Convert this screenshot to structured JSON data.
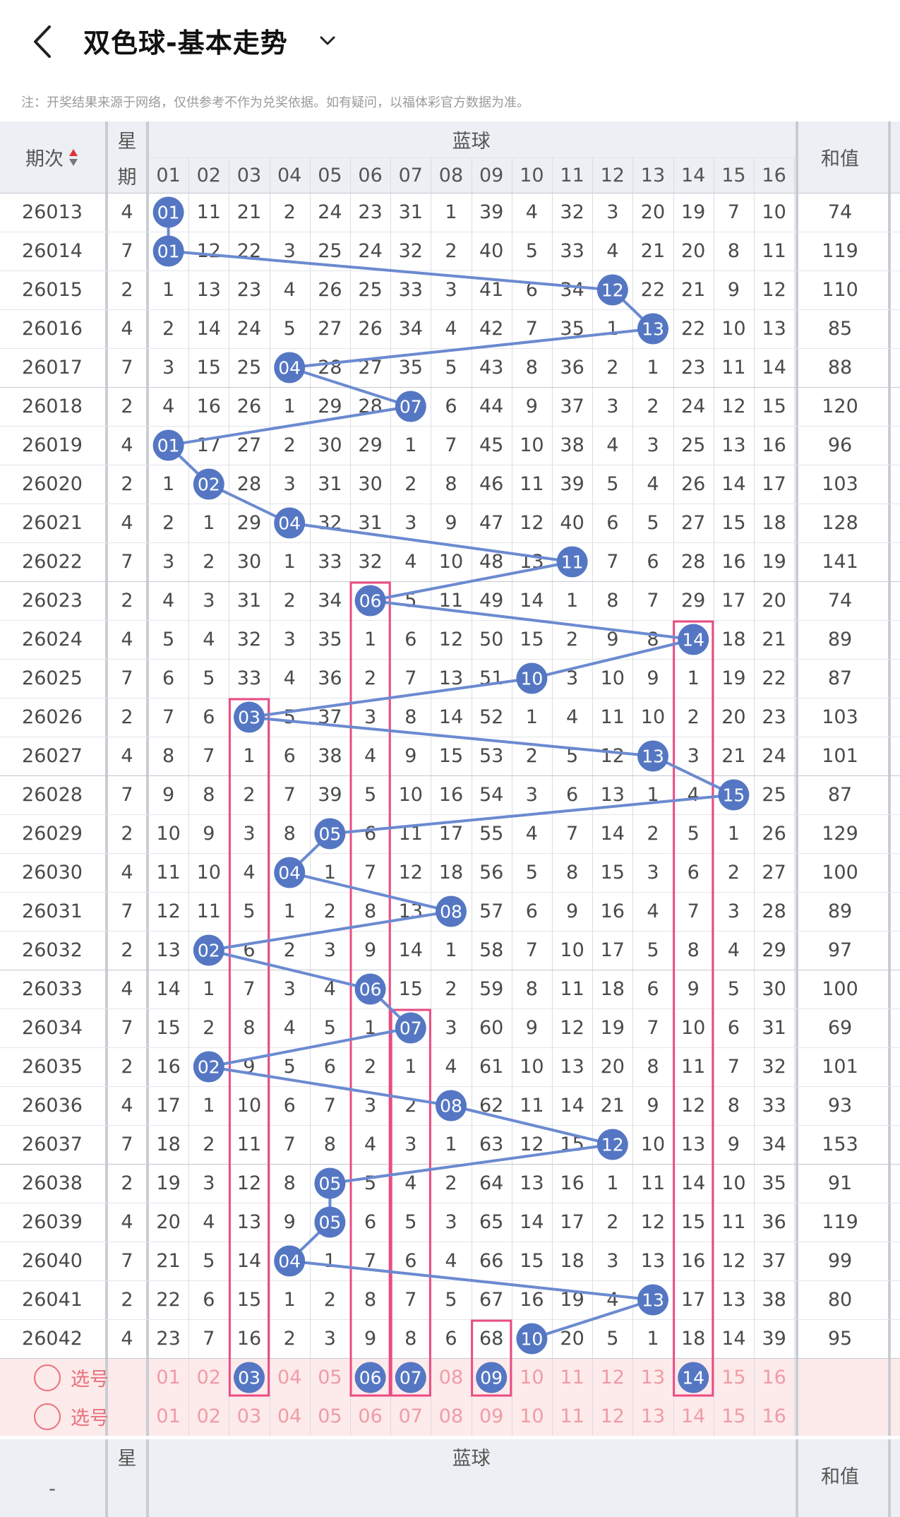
{
  "header": {
    "title": "双色球-基本走势",
    "notice": "注：开奖结果来源于网络，仅供参考不作为兑奖依据。如有疑问，以福体彩官方数据为准。"
  },
  "table_header": {
    "issue": "期次",
    "weekday": [
      "星",
      "期"
    ],
    "blue": "蓝球",
    "sum": "和值",
    "columns": [
      "01",
      "02",
      "03",
      "04",
      "05",
      "06",
      "07",
      "08",
      "09",
      "10",
      "11",
      "12",
      "13",
      "14",
      "15",
      "16"
    ]
  },
  "colors": {
    "ball": "#5577c3",
    "line": "#6b8ad0",
    "highlight_box": "#ea4c83",
    "pick_bg": "#fdeaea",
    "pick_text": "#ef9ca7"
  },
  "rows": [
    {
      "issue": "26013",
      "weekday": "4",
      "cells": [
        "01",
        "11",
        "21",
        "2",
        "24",
        "23",
        "31",
        "1",
        "39",
        "4",
        "32",
        "3",
        "20",
        "19",
        "7",
        "10"
      ],
      "blue": "01",
      "sum": "74"
    },
    {
      "issue": "26014",
      "weekday": "7",
      "cells": [
        "01",
        "12",
        "22",
        "3",
        "25",
        "24",
        "32",
        "2",
        "40",
        "5",
        "33",
        "4",
        "21",
        "20",
        "8",
        "11"
      ],
      "blue": "01",
      "sum": "119"
    },
    {
      "issue": "26015",
      "weekday": "2",
      "cells": [
        "1",
        "13",
        "23",
        "4",
        "26",
        "25",
        "33",
        "3",
        "41",
        "6",
        "34",
        "12",
        "22",
        "21",
        "9",
        "12"
      ],
      "blue": "12",
      "sum": "110"
    },
    {
      "issue": "26016",
      "weekday": "4",
      "cells": [
        "2",
        "14",
        "24",
        "5",
        "27",
        "26",
        "34",
        "4",
        "42",
        "7",
        "35",
        "1",
        "13",
        "22",
        "10",
        "13"
      ],
      "blue": "13",
      "sum": "85"
    },
    {
      "issue": "26017",
      "weekday": "7",
      "cells": [
        "3",
        "15",
        "25",
        "04",
        "28",
        "27",
        "35",
        "5",
        "43",
        "8",
        "36",
        "2",
        "1",
        "23",
        "11",
        "14"
      ],
      "blue": "04",
      "sum": "88"
    },
    {
      "issue": "26018",
      "weekday": "2",
      "cells": [
        "4",
        "16",
        "26",
        "1",
        "29",
        "28",
        "07",
        "6",
        "44",
        "9",
        "37",
        "3",
        "2",
        "24",
        "12",
        "15"
      ],
      "blue": "07",
      "sum": "120"
    },
    {
      "issue": "26019",
      "weekday": "4",
      "cells": [
        "01",
        "17",
        "27",
        "2",
        "30",
        "29",
        "1",
        "7",
        "45",
        "10",
        "38",
        "4",
        "3",
        "25",
        "13",
        "16"
      ],
      "blue": "01",
      "sum": "96"
    },
    {
      "issue": "26020",
      "weekday": "2",
      "cells": [
        "1",
        "02",
        "28",
        "3",
        "31",
        "30",
        "2",
        "8",
        "46",
        "11",
        "39",
        "5",
        "4",
        "26",
        "14",
        "17"
      ],
      "blue": "02",
      "sum": "103"
    },
    {
      "issue": "26021",
      "weekday": "4",
      "cells": [
        "2",
        "1",
        "29",
        "04",
        "32",
        "31",
        "3",
        "9",
        "47",
        "12",
        "40",
        "6",
        "5",
        "27",
        "15",
        "18"
      ],
      "blue": "04",
      "sum": "128"
    },
    {
      "issue": "26022",
      "weekday": "7",
      "cells": [
        "3",
        "2",
        "30",
        "1",
        "33",
        "32",
        "4",
        "10",
        "48",
        "13",
        "11",
        "7",
        "6",
        "28",
        "16",
        "19"
      ],
      "blue": "11",
      "sum": "141"
    },
    {
      "issue": "26023",
      "weekday": "2",
      "cells": [
        "4",
        "3",
        "31",
        "2",
        "34",
        "06",
        "5",
        "11",
        "49",
        "14",
        "1",
        "8",
        "7",
        "29",
        "17",
        "20"
      ],
      "blue": "06",
      "sum": "74"
    },
    {
      "issue": "26024",
      "weekday": "4",
      "cells": [
        "5",
        "4",
        "32",
        "3",
        "35",
        "1",
        "6",
        "12",
        "50",
        "15",
        "2",
        "9",
        "8",
        "14",
        "18",
        "21"
      ],
      "blue": "14",
      "sum": "89"
    },
    {
      "issue": "26025",
      "weekday": "7",
      "cells": [
        "6",
        "5",
        "33",
        "4",
        "36",
        "2",
        "7",
        "13",
        "51",
        "10",
        "3",
        "10",
        "9",
        "1",
        "19",
        "22"
      ],
      "blue": "10",
      "sum": "87"
    },
    {
      "issue": "26026",
      "weekday": "2",
      "cells": [
        "7",
        "6",
        "03",
        "5",
        "37",
        "3",
        "8",
        "14",
        "52",
        "1",
        "4",
        "11",
        "10",
        "2",
        "20",
        "23"
      ],
      "blue": "03",
      "sum": "103"
    },
    {
      "issue": "26027",
      "weekday": "4",
      "cells": [
        "8",
        "7",
        "1",
        "6",
        "38",
        "4",
        "9",
        "15",
        "53",
        "2",
        "5",
        "12",
        "13",
        "3",
        "21",
        "24"
      ],
      "blue": "13",
      "sum": "101"
    },
    {
      "issue": "26028",
      "weekday": "7",
      "cells": [
        "9",
        "8",
        "2",
        "7",
        "39",
        "5",
        "10",
        "16",
        "54",
        "3",
        "6",
        "13",
        "1",
        "4",
        "15",
        "25"
      ],
      "blue": "15",
      "sum": "87"
    },
    {
      "issue": "26029",
      "weekday": "2",
      "cells": [
        "10",
        "9",
        "3",
        "8",
        "05",
        "6",
        "11",
        "17",
        "55",
        "4",
        "7",
        "14",
        "2",
        "5",
        "1",
        "26"
      ],
      "blue": "05",
      "sum": "129"
    },
    {
      "issue": "26030",
      "weekday": "4",
      "cells": [
        "11",
        "10",
        "4",
        "04",
        "1",
        "7",
        "12",
        "18",
        "56",
        "5",
        "8",
        "15",
        "3",
        "6",
        "2",
        "27"
      ],
      "blue": "04",
      "sum": "100"
    },
    {
      "issue": "26031",
      "weekday": "7",
      "cells": [
        "12",
        "11",
        "5",
        "1",
        "2",
        "8",
        "13",
        "08",
        "57",
        "6",
        "9",
        "16",
        "4",
        "7",
        "3",
        "28"
      ],
      "blue": "08",
      "sum": "89"
    },
    {
      "issue": "26032",
      "weekday": "2",
      "cells": [
        "13",
        "02",
        "6",
        "2",
        "3",
        "9",
        "14",
        "1",
        "58",
        "7",
        "10",
        "17",
        "5",
        "8",
        "4",
        "29"
      ],
      "blue": "02",
      "sum": "97"
    },
    {
      "issue": "26033",
      "weekday": "4",
      "cells": [
        "14",
        "1",
        "7",
        "3",
        "4",
        "06",
        "15",
        "2",
        "59",
        "8",
        "11",
        "18",
        "6",
        "9",
        "5",
        "30"
      ],
      "blue": "06",
      "sum": "100"
    },
    {
      "issue": "26034",
      "weekday": "7",
      "cells": [
        "15",
        "2",
        "8",
        "4",
        "5",
        "1",
        "07",
        "3",
        "60",
        "9",
        "12",
        "19",
        "7",
        "10",
        "6",
        "31"
      ],
      "blue": "07",
      "sum": "69"
    },
    {
      "issue": "26035",
      "weekday": "2",
      "cells": [
        "16",
        "02",
        "9",
        "5",
        "6",
        "2",
        "1",
        "4",
        "61",
        "10",
        "13",
        "20",
        "8",
        "11",
        "7",
        "32"
      ],
      "blue": "02",
      "sum": "101"
    },
    {
      "issue": "26036",
      "weekday": "4",
      "cells": [
        "17",
        "1",
        "10",
        "6",
        "7",
        "3",
        "2",
        "08",
        "62",
        "11",
        "14",
        "21",
        "9",
        "12",
        "8",
        "33"
      ],
      "blue": "08",
      "sum": "93"
    },
    {
      "issue": "26037",
      "weekday": "7",
      "cells": [
        "18",
        "2",
        "11",
        "7",
        "8",
        "4",
        "3",
        "1",
        "63",
        "12",
        "15",
        "12",
        "10",
        "13",
        "9",
        "34"
      ],
      "blue": "12",
      "sum": "153"
    },
    {
      "issue": "26038",
      "weekday": "2",
      "cells": [
        "19",
        "3",
        "12",
        "8",
        "05",
        "5",
        "4",
        "2",
        "64",
        "13",
        "16",
        "1",
        "11",
        "14",
        "10",
        "35"
      ],
      "blue": "05",
      "sum": "91"
    },
    {
      "issue": "26039",
      "weekday": "4",
      "cells": [
        "20",
        "4",
        "13",
        "9",
        "05",
        "6",
        "5",
        "3",
        "65",
        "14",
        "17",
        "2",
        "12",
        "15",
        "11",
        "36"
      ],
      "blue": "05",
      "sum": "119"
    },
    {
      "issue": "26040",
      "weekday": "7",
      "cells": [
        "21",
        "5",
        "14",
        "04",
        "1",
        "7",
        "6",
        "4",
        "66",
        "15",
        "18",
        "3",
        "13",
        "16",
        "12",
        "37"
      ],
      "blue": "04",
      "sum": "99"
    },
    {
      "issue": "26041",
      "weekday": "2",
      "cells": [
        "22",
        "6",
        "15",
        "1",
        "2",
        "8",
        "7",
        "5",
        "67",
        "16",
        "19",
        "4",
        "13",
        "17",
        "13",
        "38"
      ],
      "blue": "13",
      "sum": "80"
    },
    {
      "issue": "26042",
      "weekday": "4",
      "cells": [
        "23",
        "7",
        "16",
        "2",
        "3",
        "9",
        "8",
        "6",
        "68",
        "10",
        "20",
        "5",
        "1",
        "18",
        "14",
        "39"
      ],
      "blue": "10",
      "sum": "95"
    }
  ],
  "highlight_boxes": [
    {
      "column": "03",
      "from_issue": "26026",
      "to": "pick-1"
    },
    {
      "column": "06",
      "from_issue": "26023",
      "to": "pick-1"
    },
    {
      "column": "07",
      "from_issue": "26034",
      "to": "pick-1"
    },
    {
      "column": "09",
      "from_issue": "26042",
      "to": "pick-1"
    },
    {
      "column": "14",
      "from_issue": "26024",
      "to": "pick-1"
    }
  ],
  "pick_rows": [
    {
      "label": "选号",
      "numbers": [
        "01",
        "02",
        "03",
        "04",
        "05",
        "06",
        "07",
        "08",
        "09",
        "10",
        "11",
        "12",
        "13",
        "14",
        "15",
        "16"
      ],
      "selected": [
        "03",
        "06",
        "07",
        "09",
        "14"
      ]
    },
    {
      "label": "选号",
      "numbers": [
        "01",
        "02",
        "03",
        "04",
        "05",
        "06",
        "07",
        "08",
        "09",
        "10",
        "11",
        "12",
        "13",
        "14",
        "15",
        "16"
      ],
      "selected": []
    }
  ],
  "footer_header": {
    "issue": "-",
    "weekday": "星",
    "blue": "蓝球",
    "sum": "和值"
  }
}
